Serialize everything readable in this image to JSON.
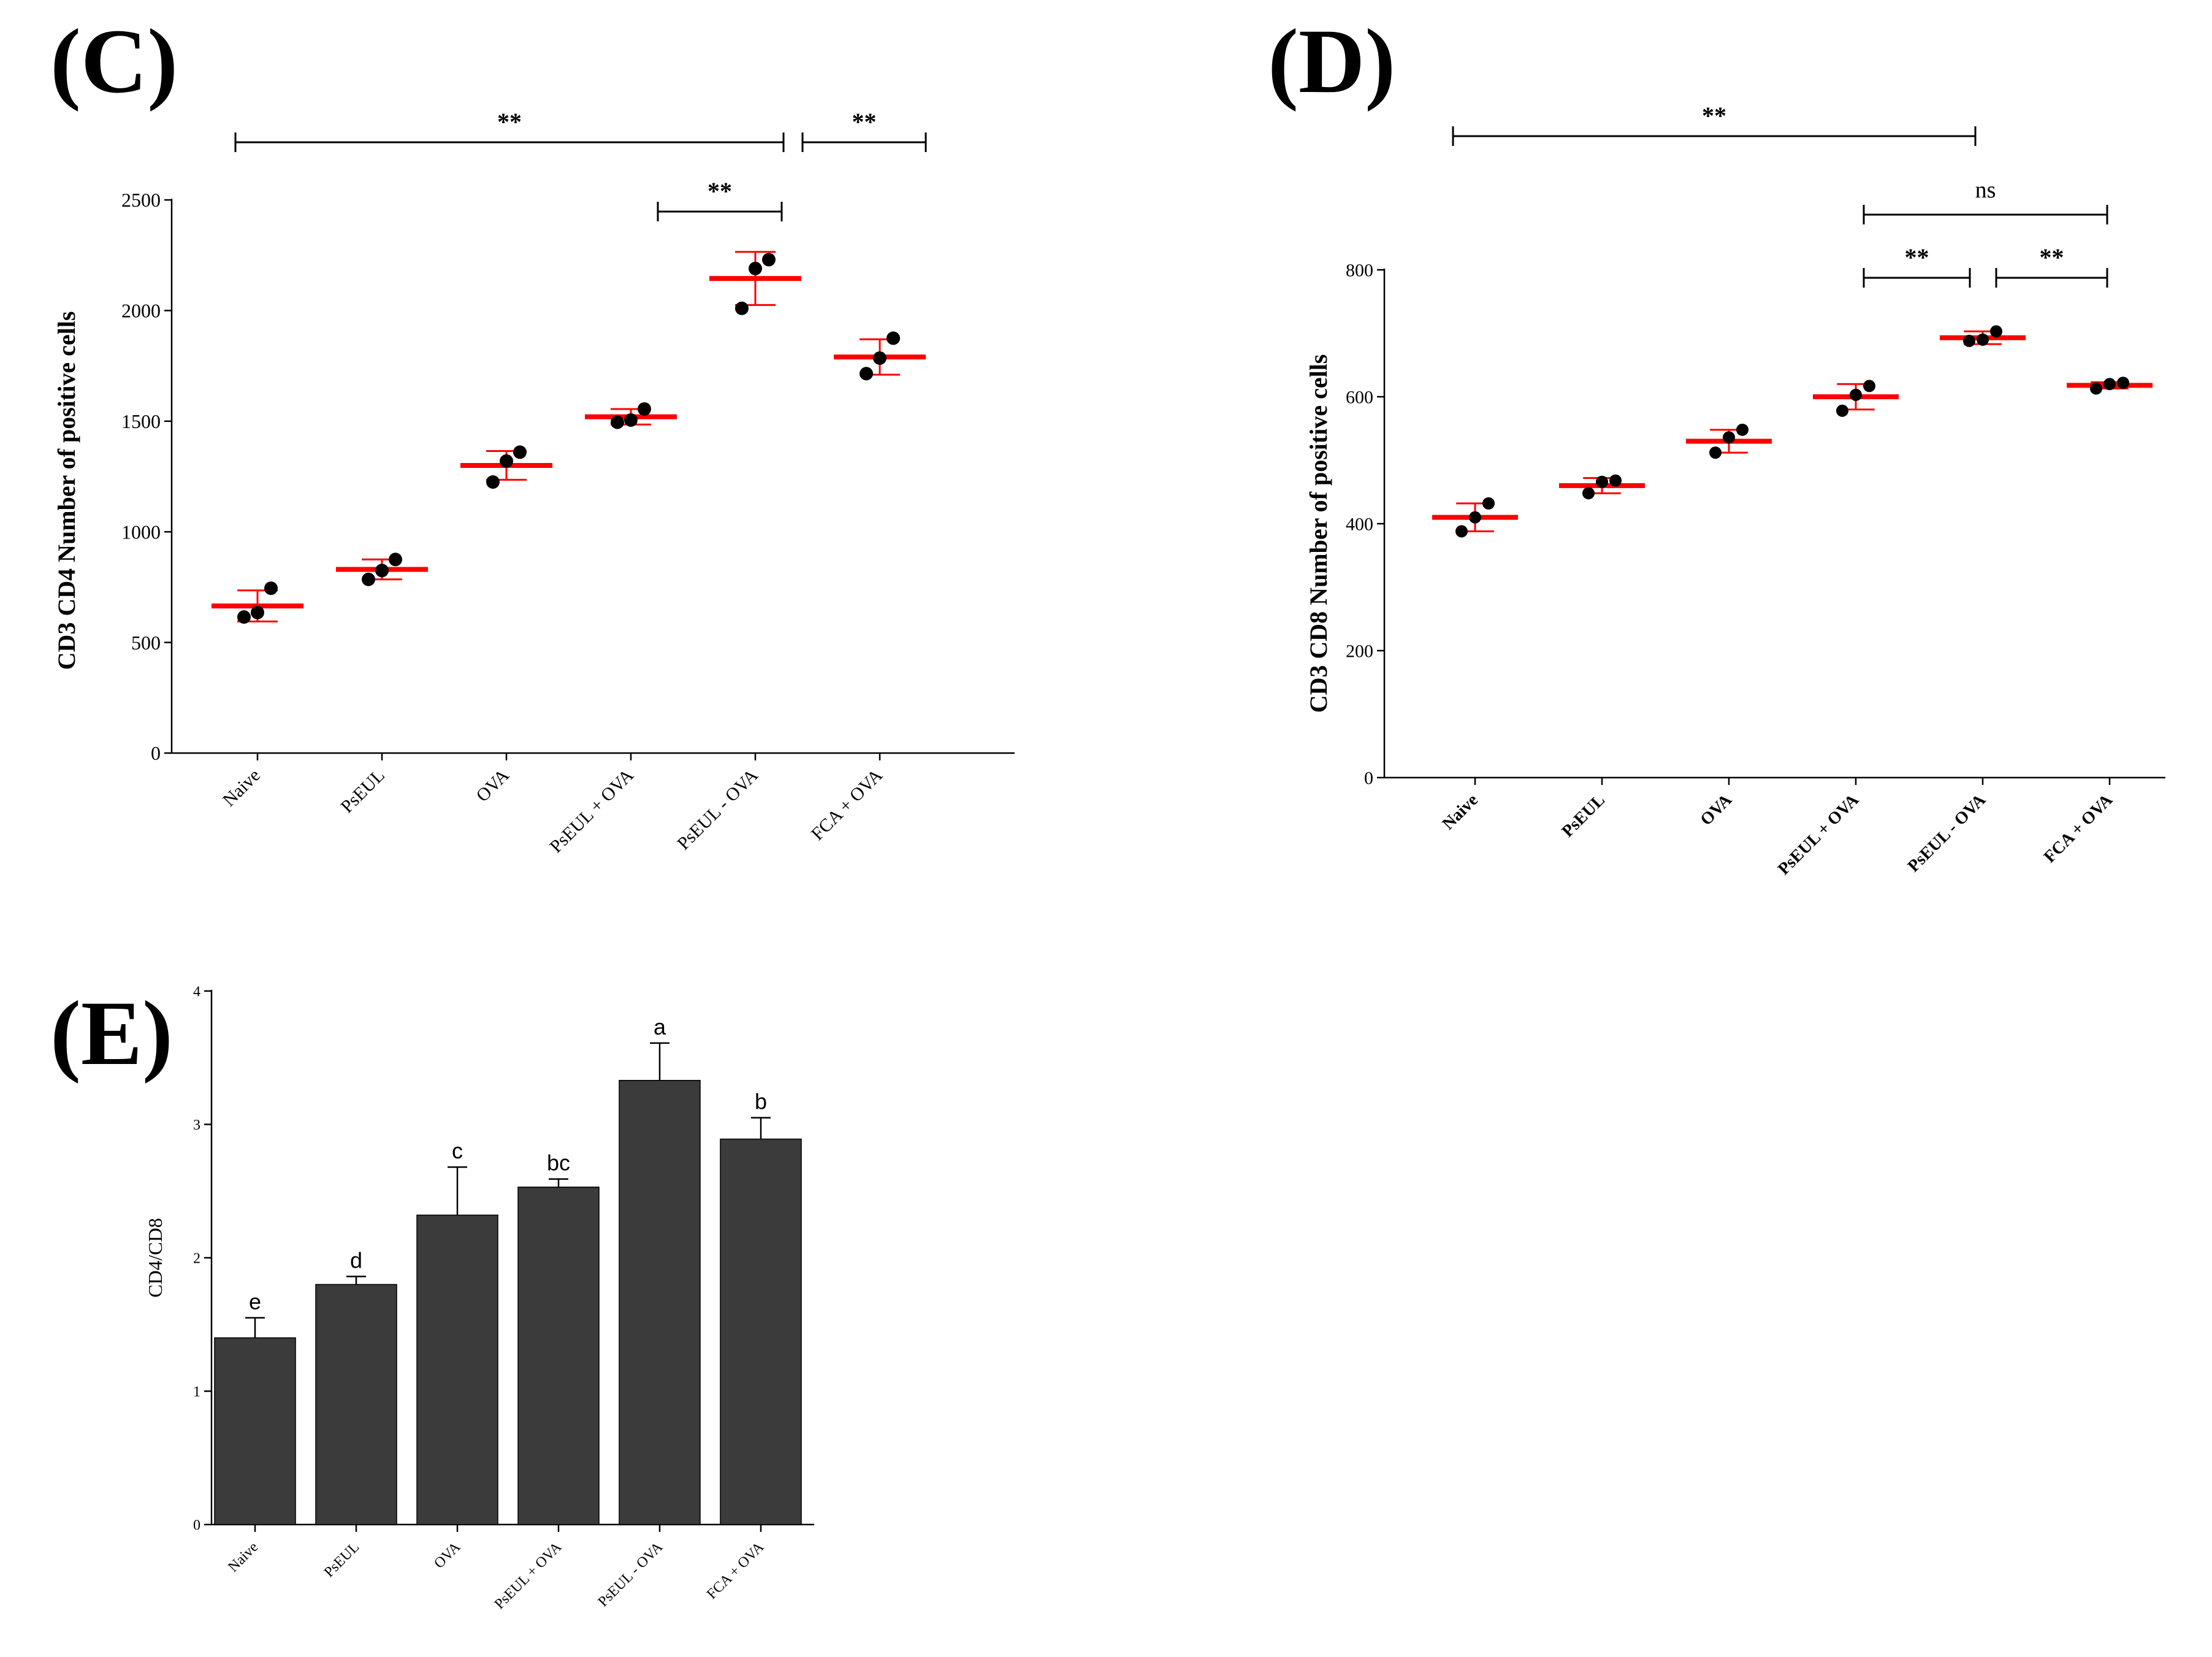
{
  "colors": {
    "axis": "#000000",
    "mean_line": "#ff0000",
    "point": "#000000",
    "bar_fill": "#3b3b3b"
  },
  "chart_data": [
    {
      "id": "C",
      "panel_label": "(C)",
      "type": "scatter",
      "ylabel": "CD3 CD4 Number of positive cells",
      "ylim": [
        0,
        2500
      ],
      "yticks": [
        0,
        500,
        1000,
        1500,
        2000,
        2500
      ],
      "categories": [
        "Naive",
        "PsEUL",
        "OVA",
        "PsEUL + OVA",
        "PsEUL - OVA",
        "FCA + OVA"
      ],
      "means": [
        665,
        830,
        1300,
        1520,
        2145,
        1790
      ],
      "errors": [
        70,
        45,
        65,
        35,
        120,
        80
      ],
      "points": [
        [
          615,
          635,
          745
        ],
        [
          785,
          825,
          875
        ],
        [
          1225,
          1320,
          1360
        ],
        [
          1495,
          1505,
          1555
        ],
        [
          2010,
          2190,
          2230
        ],
        [
          1715,
          1785,
          1875
        ]
      ],
      "significance": [
        {
          "from": 0,
          "to": 4,
          "label": "**",
          "level": 2
        },
        {
          "from": 4,
          "to": 5,
          "label": "**",
          "level": 2
        },
        {
          "from": 3,
          "to": 4,
          "label": "**",
          "level": 1
        }
      ]
    },
    {
      "id": "D",
      "panel_label": "(D)",
      "type": "scatter",
      "ylabel": "CD3 CD8 Number of positive cells",
      "ylim": [
        0,
        800
      ],
      "yticks": [
        0,
        200,
        400,
        600,
        800
      ],
      "categories": [
        "Naive",
        "PsEUL",
        "OVA",
        "PsEUL + OVA",
        "PsEUL - OVA",
        "FCA + OVA"
      ],
      "means": [
        410,
        460,
        530,
        600,
        693,
        618
      ],
      "errors": [
        22,
        12,
        18,
        20,
        10,
        5
      ],
      "points": [
        [
          388,
          410,
          432
        ],
        [
          448,
          466,
          468
        ],
        [
          512,
          536,
          548
        ],
        [
          578,
          603,
          617
        ],
        [
          688,
          690,
          703
        ],
        [
          613,
          620,
          622
        ]
      ],
      "significance": [
        {
          "from": 0,
          "to": 4,
          "label": "**",
          "level": 3
        },
        {
          "from": 3,
          "to": 5,
          "label": "ns",
          "level": 2
        },
        {
          "from": 3,
          "to": 4,
          "label": "**",
          "level": 1
        },
        {
          "from": 4,
          "to": 5,
          "label": "**",
          "level": 1
        }
      ]
    },
    {
      "id": "E",
      "panel_label": "(E)",
      "type": "bar",
      "ylabel": "CD4/CD8",
      "ylim": [
        0,
        4
      ],
      "yticks": [
        0,
        1,
        2,
        3,
        4
      ],
      "categories": [
        "Naive",
        "PsEUL",
        "OVA",
        "PsEUL + OVA",
        "PsEUL - OVA",
        "FCA + OVA"
      ],
      "values": [
        1.4,
        1.8,
        2.32,
        2.53,
        3.33,
        2.89
      ],
      "errors": [
        0.15,
        0.06,
        0.36,
        0.06,
        0.28,
        0.16
      ],
      "letters": [
        "e",
        "d",
        "c",
        "bc",
        "a",
        "b"
      ]
    }
  ]
}
